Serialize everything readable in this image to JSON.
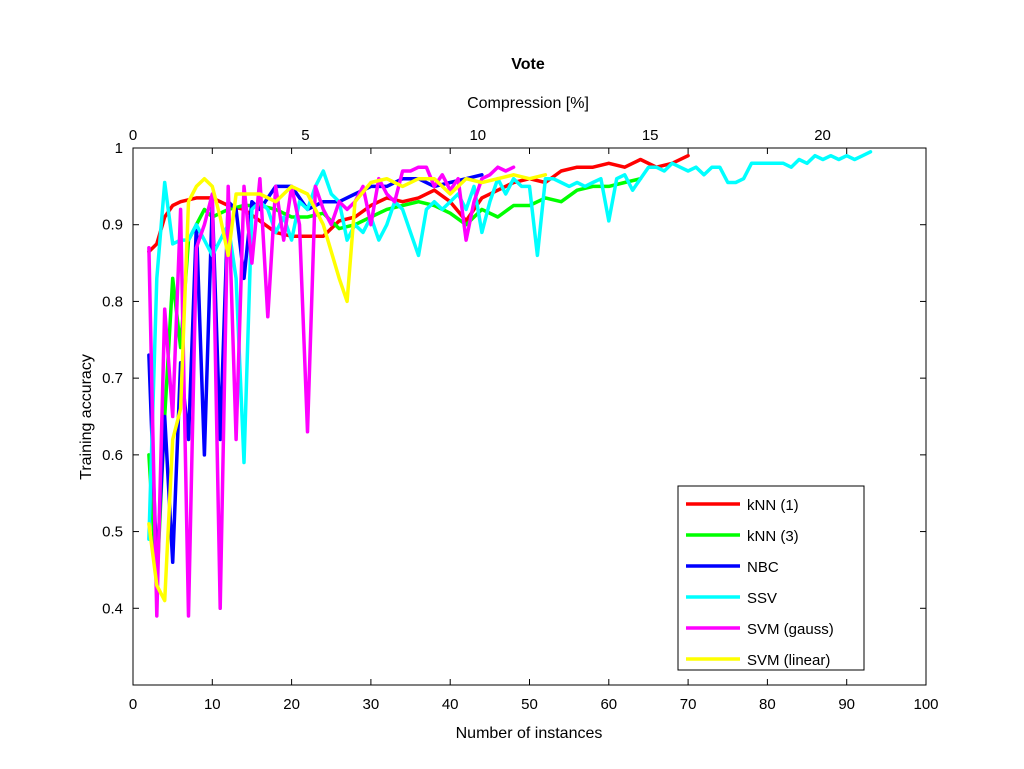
{
  "chart_data": {
    "type": "line",
    "title": "Vote",
    "xlabel": "Number of instances",
    "ylabel": "Training accuracy",
    "x2label": "Compression [%]",
    "xlim": [
      0,
      100
    ],
    "ylim": [
      0.3,
      1.0
    ],
    "x2lim": [
      0,
      23
    ],
    "xticks": [
      0,
      10,
      20,
      30,
      40,
      50,
      60,
      70,
      80,
      90,
      100
    ],
    "yticks": [
      0.4,
      0.5,
      0.6,
      0.7,
      0.8,
      0.9,
      1
    ],
    "ytick_labels": [
      "0.4",
      "0.5",
      "0.6",
      "0.7",
      "0.8",
      "0.9",
      "1"
    ],
    "x2ticks": [
      0,
      5,
      10,
      15,
      20
    ],
    "grid": false,
    "legend_position": "bottom-right",
    "series": [
      {
        "name": "kNN (1)",
        "color": "#ff0000",
        "x": [
          2,
          3,
          4,
          5,
          6,
          8,
          10,
          12,
          14,
          16,
          18,
          20,
          22,
          24,
          26,
          28,
          30,
          32,
          34,
          36,
          38,
          40,
          42,
          44,
          46,
          48,
          50,
          52,
          54,
          56,
          58,
          60,
          62,
          64,
          66,
          68,
          70
        ],
        "y": [
          0.865,
          0.875,
          0.91,
          0.925,
          0.93,
          0.935,
          0.935,
          0.925,
          0.92,
          0.905,
          0.89,
          0.885,
          0.885,
          0.885,
          0.905,
          0.91,
          0.925,
          0.935,
          0.93,
          0.935,
          0.945,
          0.93,
          0.905,
          0.935,
          0.945,
          0.955,
          0.96,
          0.955,
          0.97,
          0.975,
          0.975,
          0.98,
          0.975,
          0.985,
          0.975,
          0.98,
          0.99
        ]
      },
      {
        "name": "kNN (3)",
        "color": "#00ff00",
        "x": [
          2,
          3,
          4,
          5,
          6,
          7,
          8,
          9,
          10,
          12,
          14,
          16,
          18,
          20,
          22,
          24,
          26,
          28,
          30,
          32,
          34,
          36,
          38,
          40,
          42,
          44,
          46,
          48,
          50,
          52,
          54,
          56,
          58,
          60,
          62,
          64
        ],
        "y": [
          0.6,
          0.43,
          0.65,
          0.83,
          0.74,
          0.88,
          0.9,
          0.92,
          0.91,
          0.92,
          0.925,
          0.925,
          0.92,
          0.91,
          0.91,
          0.915,
          0.895,
          0.9,
          0.91,
          0.92,
          0.925,
          0.93,
          0.925,
          0.915,
          0.9,
          0.92,
          0.91,
          0.925,
          0.925,
          0.935,
          0.93,
          0.945,
          0.95,
          0.95,
          0.955,
          0.96
        ]
      },
      {
        "name": "NBC",
        "color": "#0000ff",
        "x": [
          2,
          3,
          4,
          5,
          6,
          7,
          8,
          9,
          10,
          11,
          12,
          13,
          14,
          15,
          16,
          18,
          20,
          22,
          24,
          26,
          28,
          30,
          32,
          34,
          36,
          38,
          40,
          42,
          44
        ],
        "y": [
          0.73,
          0.45,
          0.65,
          0.46,
          0.72,
          0.62,
          0.9,
          0.6,
          0.93,
          0.62,
          0.93,
          0.92,
          0.83,
          0.93,
          0.92,
          0.95,
          0.95,
          0.92,
          0.93,
          0.93,
          0.94,
          0.95,
          0.95,
          0.96,
          0.96,
          0.95,
          0.955,
          0.96,
          0.965
        ]
      },
      {
        "name": "SSV",
        "color": "#00ffff",
        "x": [
          2,
          3,
          4,
          5,
          6,
          7,
          8,
          10,
          12,
          13,
          14,
          15,
          16,
          17,
          18,
          19,
          20,
          21,
          22,
          23,
          24,
          25,
          26,
          27,
          28,
          29,
          30,
          31,
          32,
          33,
          34,
          35,
          36,
          37,
          38,
          39,
          40,
          41,
          42,
          43,
          44,
          45,
          46,
          47,
          48,
          49,
          50,
          51,
          52,
          53,
          54,
          55,
          56,
          57,
          58,
          59,
          60,
          61,
          62,
          63,
          64,
          65,
          66,
          67,
          68,
          69,
          70,
          71,
          72,
          73,
          74,
          75,
          76,
          77,
          78,
          79,
          80,
          81,
          82,
          83,
          84,
          85,
          86,
          87,
          88,
          89,
          90,
          91,
          92,
          93
        ],
        "y": [
          0.49,
          0.83,
          0.955,
          0.875,
          0.88,
          0.88,
          0.9,
          0.86,
          0.9,
          0.83,
          0.59,
          0.92,
          0.93,
          0.92,
          0.89,
          0.91,
          0.88,
          0.93,
          0.92,
          0.95,
          0.97,
          0.94,
          0.93,
          0.88,
          0.9,
          0.89,
          0.91,
          0.88,
          0.9,
          0.93,
          0.92,
          0.89,
          0.86,
          0.92,
          0.93,
          0.92,
          0.93,
          0.94,
          0.92,
          0.95,
          0.89,
          0.93,
          0.96,
          0.94,
          0.96,
          0.95,
          0.95,
          0.86,
          0.96,
          0.96,
          0.955,
          0.95,
          0.955,
          0.95,
          0.955,
          0.96,
          0.905,
          0.96,
          0.965,
          0.945,
          0.96,
          0.975,
          0.975,
          0.97,
          0.98,
          0.975,
          0.97,
          0.975,
          0.965,
          0.975,
          0.975,
          0.955,
          0.955,
          0.96,
          0.98,
          0.98,
          0.98,
          0.98,
          0.98,
          0.975,
          0.985,
          0.98,
          0.99,
          0.985,
          0.99,
          0.985,
          0.99,
          0.985,
          0.99,
          0.995
        ]
      },
      {
        "name": "SVM (gauss)",
        "color": "#ff00ff",
        "x": [
          2,
          3,
          4,
          5,
          6,
          7,
          8,
          9,
          10,
          11,
          12,
          13,
          14,
          15,
          16,
          17,
          18,
          19,
          20,
          21,
          22,
          23,
          24,
          25,
          26,
          27,
          28,
          29,
          30,
          31,
          32,
          33,
          34,
          35,
          36,
          37,
          38,
          39,
          40,
          41,
          42,
          43,
          44,
          45,
          46,
          47,
          48
        ],
        "y": [
          0.87,
          0.39,
          0.79,
          0.65,
          0.92,
          0.39,
          0.87,
          0.9,
          0.94,
          0.4,
          0.95,
          0.62,
          0.95,
          0.85,
          0.96,
          0.78,
          0.95,
          0.88,
          0.95,
          0.9,
          0.63,
          0.95,
          0.92,
          0.9,
          0.93,
          0.92,
          0.93,
          0.95,
          0.9,
          0.96,
          0.94,
          0.93,
          0.97,
          0.97,
          0.975,
          0.975,
          0.95,
          0.965,
          0.945,
          0.96,
          0.88,
          0.93,
          0.96,
          0.965,
          0.975,
          0.97,
          0.975
        ]
      },
      {
        "name": "SVM (linear)",
        "color": "#ffff00",
        "x": [
          2,
          3,
          4,
          5,
          6,
          7,
          8,
          9,
          10,
          11,
          12,
          13,
          14,
          16,
          18,
          20,
          22,
          24,
          26,
          27,
          28,
          30,
          32,
          34,
          36,
          38,
          40,
          42,
          44,
          46,
          48,
          50,
          52
        ],
        "y": [
          0.51,
          0.43,
          0.41,
          0.62,
          0.66,
          0.93,
          0.95,
          0.96,
          0.95,
          0.91,
          0.86,
          0.94,
          0.94,
          0.94,
          0.93,
          0.95,
          0.94,
          0.9,
          0.83,
          0.8,
          0.93,
          0.955,
          0.96,
          0.95,
          0.96,
          0.96,
          0.94,
          0.96,
          0.955,
          0.96,
          0.965,
          0.96,
          0.965
        ]
      }
    ]
  }
}
